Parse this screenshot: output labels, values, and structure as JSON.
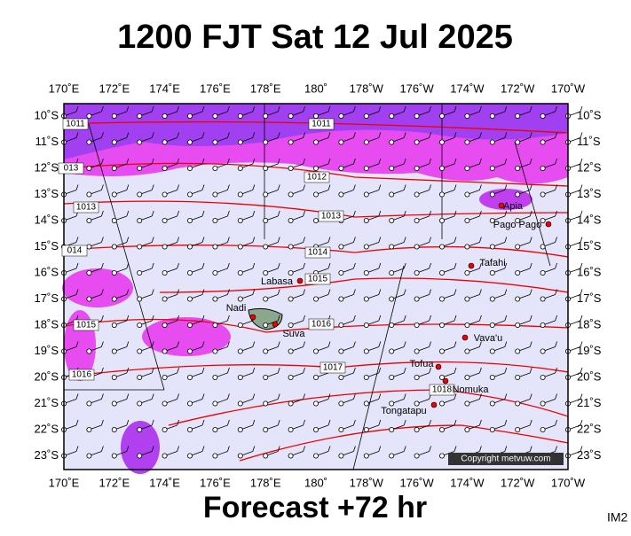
{
  "header": {
    "title": "1200 FJT Sat 12 Jul 2025"
  },
  "footer": {
    "caption": "Forecast +72 hr",
    "code": "IM2"
  },
  "map": {
    "lon_labels": [
      "170˚E",
      "172˚E",
      "174˚E",
      "176˚E",
      "178˚E",
      "180˚",
      "178˚W",
      "176˚W",
      "174˚W",
      "172˚W",
      "170˚W"
    ],
    "lat_labels": [
      "10˚S",
      "11˚S",
      "12˚S",
      "13˚S",
      "14˚S",
      "15˚S",
      "16˚S",
      "17˚S",
      "18˚S",
      "19˚S",
      "20˚S",
      "21˚S",
      "22˚S",
      "23˚S"
    ],
    "isobar_labels": [
      "1011",
      "1011",
      "013",
      "1012",
      "1013",
      "1013",
      "014",
      "1014",
      "1015",
      "1015",
      "1016",
      "1016",
      "1017",
      "1018"
    ],
    "places": [
      "Apia",
      "Pago Pago",
      "Tafahi",
      "Labasa",
      "Nadi",
      "Suva",
      "Vava'u",
      "Tofua",
      "Nomuka",
      "Tongatapu"
    ],
    "copyright": "Copyright metvuw.com"
  }
}
